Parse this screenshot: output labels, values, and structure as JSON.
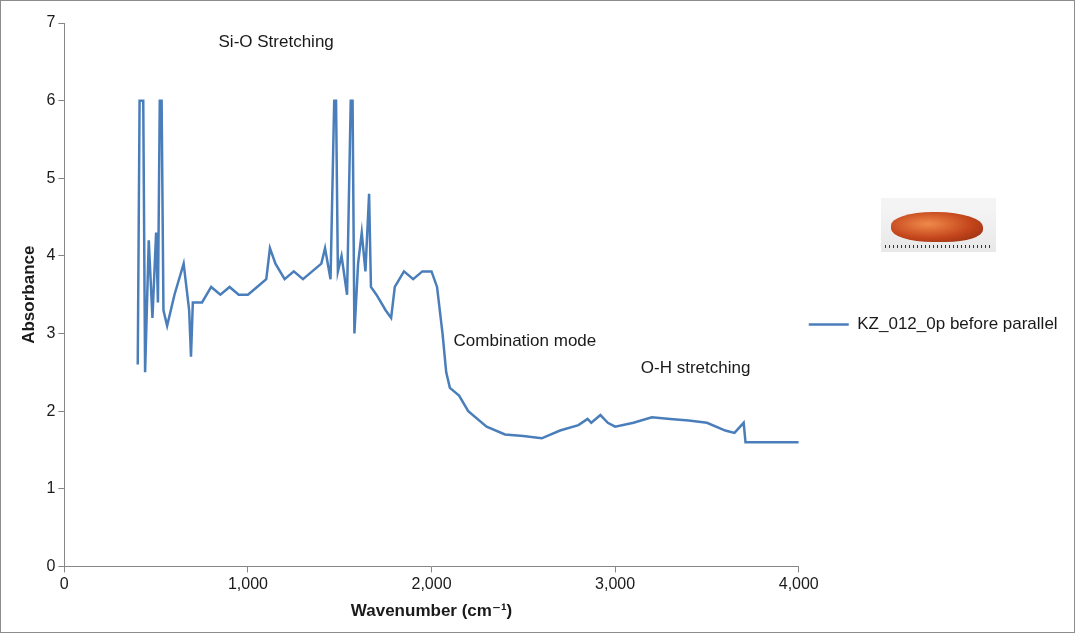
{
  "chart_data": {
    "type": "line",
    "x_label": "Wavenumber (cm⁻¹)",
    "y_label": "Absorbance",
    "annotations": [
      "Si-O Stretching",
      "Combination mode",
      "O-H stretching"
    ],
    "x": [
      400,
      410,
      430,
      440,
      460,
      480,
      500,
      510,
      520,
      530,
      540,
      560,
      600,
      650,
      680,
      690,
      700,
      750,
      800,
      850,
      900,
      950,
      1000,
      1050,
      1100,
      1120,
      1150,
      1200,
      1250,
      1300,
      1350,
      1400,
      1420,
      1450,
      1470,
      1480,
      1490,
      1510,
      1540,
      1560,
      1570,
      1580,
      1600,
      1620,
      1640,
      1660,
      1670,
      1700,
      1750,
      1780,
      1800,
      1850,
      1900,
      1950,
      2000,
      2030,
      2060,
      2080,
      2100,
      2150,
      2200,
      2300,
      2400,
      2500,
      2600,
      2700,
      2800,
      2850,
      2870,
      2920,
      2960,
      3000,
      3100,
      3200,
      3300,
      3400,
      3500,
      3600,
      3650,
      3700,
      3710,
      3800,
      3900,
      4000
    ],
    "series": [
      {
        "name": "KZ_012_0p before parallel",
        "color": "#4a7ebb",
        "values": [
          2.6,
          6.0,
          6.0,
          2.5,
          4.2,
          3.2,
          4.3,
          3.4,
          6.0,
          6.0,
          3.3,
          3.1,
          3.5,
          3.9,
          3.3,
          2.7,
          3.4,
          3.4,
          3.6,
          3.5,
          3.6,
          3.5,
          3.5,
          3.6,
          3.7,
          4.1,
          3.9,
          3.7,
          3.8,
          3.7,
          3.8,
          3.9,
          4.1,
          3.7,
          6.0,
          6.0,
          3.8,
          4.0,
          3.5,
          6.0,
          6.0,
          3.0,
          3.9,
          4.3,
          3.8,
          4.8,
          3.6,
          3.5,
          3.3,
          3.2,
          3.6,
          3.8,
          3.7,
          3.8,
          3.8,
          3.6,
          3.0,
          2.5,
          2.3,
          2.2,
          2.0,
          1.8,
          1.7,
          1.68,
          1.65,
          1.75,
          1.82,
          1.9,
          1.85,
          1.95,
          1.85,
          1.8,
          1.85,
          1.92,
          1.9,
          1.88,
          1.85,
          1.75,
          1.72,
          1.85,
          1.6,
          1.6,
          1.6,
          1.6
        ]
      }
    ],
    "xlim": [
      0,
      4000
    ],
    "xticks": [
      0,
      {
        "value": 1000,
        "label": "1,000"
      },
      {
        "value": 2000,
        "label": "2,000"
      },
      {
        "value": 3000,
        "label": "3,000"
      },
      {
        "value": 4000,
        "label": "4,000"
      }
    ],
    "ylim": [
      0,
      7
    ],
    "yticks": [
      0,
      1,
      2,
      3,
      4,
      5,
      6,
      7
    ],
    "grid": false,
    "legend": "right"
  }
}
